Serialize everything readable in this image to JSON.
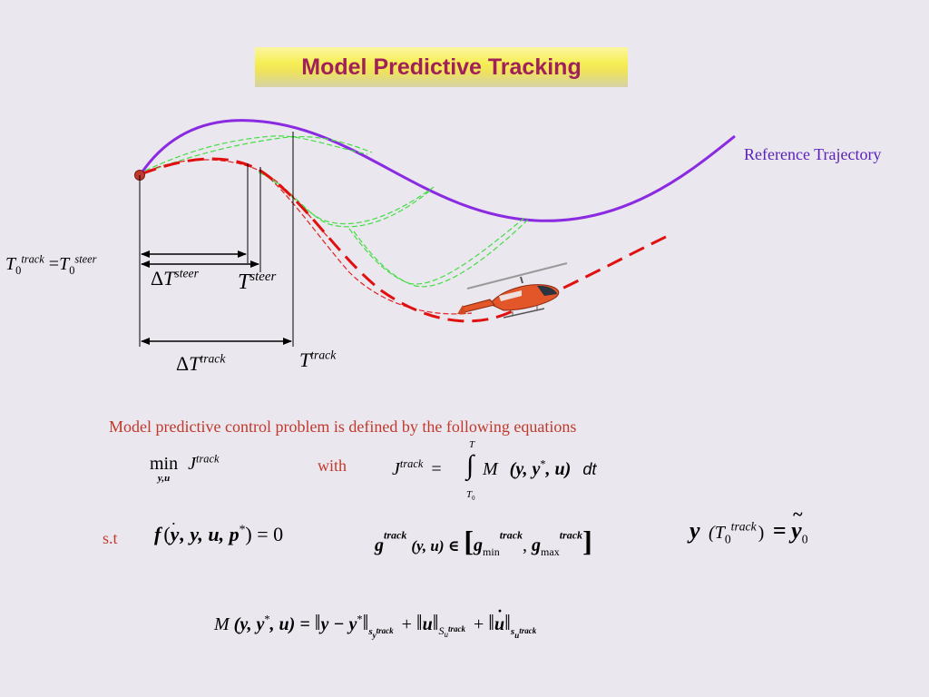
{
  "title": "Model Predictive Tracking",
  "reference_label": "Reference Trajectory",
  "description": "Model predictive control problem is defined by the following equations",
  "with_label": "with",
  "st_label": "s.t",
  "labels": {
    "t0_eq_left_sup": "track",
    "t0_eq_left_sub": "0",
    "t0_eq_right_sup": "steer",
    "t0_eq_right_sub": "0",
    "delta": "Δ",
    "steer": "steer",
    "track": "track",
    "T": "T"
  },
  "eq_min": {
    "min": "min",
    "sub": "y,u",
    "J": "J",
    "sup": "track"
  },
  "eq_J": {
    "J": "J",
    "sup": "track",
    "eq": "=",
    "upper": "T",
    "lower": "T",
    "lower_sub": "0",
    "M": "M",
    "args": "(y, y",
    "star": "*",
    "tail": ", u)",
    "dt": "dt"
  },
  "eq_f": {
    "f": "f",
    "open": "(",
    "ydot": "y",
    "rest": ", y, u, p",
    "star": "*",
    "close": ") = 0"
  },
  "eq_g": {
    "g": "g",
    "sup": "track",
    "args": "(y, u) ∈",
    "gmin": "g",
    "gmin_sub": "min",
    "gmin_sup": "track",
    "gmax": "g",
    "gmax_sub": "max",
    "gmax_sup": "track"
  },
  "eq_y": {
    "y": "y",
    "T": "(T",
    "sub": "0",
    "sup": "track",
    "close": ")",
    "eq": "=",
    "ytilde": "y",
    "ytilde_sub": "0"
  },
  "eq_M": {
    "M": "M",
    "lhs": "(y, y",
    "star": "*",
    "lhs_tail": ", u) =",
    "norm1": "y − y",
    "norm1_star": "*",
    "norm1_sub": "s",
    "norm1_subsub": "y",
    "norm1_sup": "track",
    "plus": "+",
    "norm2": "u",
    "norm2_sub": "S",
    "norm2_subsub": "u",
    "norm2_sup": "track",
    "norm3": "u",
    "norm3_sub": "s",
    "norm3_subsub": "u",
    "norm3_sup": "track"
  },
  "colors": {
    "reference": "#8a2be2",
    "tracked": "#e01010",
    "prediction_green": "#44dd44",
    "prediction_red": "#e02020",
    "title_text": "#a0205a",
    "description": "#c0392b"
  }
}
